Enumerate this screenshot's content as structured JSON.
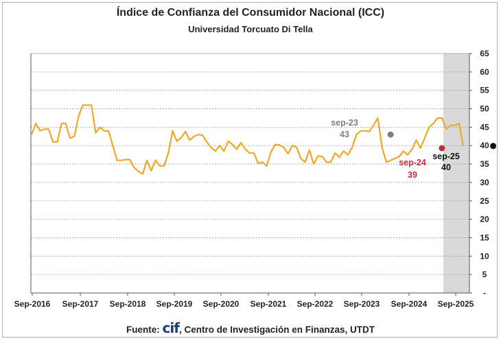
{
  "chart_data": {
    "type": "line",
    "title": "Índice de Confianza del Consumidor Nacional (ICC)",
    "subtitle": "Universidad Torcuato Di Tella",
    "source_prefix": "Fuente: ",
    "source_logo": "cif",
    "source_suffix": ", Centro de Investigación en Finanzas, UTDT",
    "ylim": [
      0,
      65
    ],
    "y_ticks": [
      65,
      60,
      55,
      50,
      45,
      40,
      35,
      30,
      25,
      20,
      15,
      10,
      5,
      0
    ],
    "y_tick_labels": [
      "65",
      "60",
      "55",
      "50",
      "45",
      "40",
      "35",
      "30",
      "25",
      "20",
      "15",
      "10",
      "5",
      "-"
    ],
    "x_tick_labels": [
      "Sep-2016",
      "Sep-2017",
      "Sep-2018",
      "Sep-2019",
      "Sep-2020",
      "Sep-2021",
      "Sep-2022",
      "Sep-2023",
      "Sep-2024",
      "Sep-2025"
    ],
    "series_color": "#f5a623",
    "shaded_region_color": "#d9d9d9",
    "grid": true,
    "series": [
      {
        "values": [
          43,
          46,
          44,
          44.5,
          44.5,
          41,
          41,
          46,
          46,
          42,
          42.5,
          48,
          51,
          51,
          51,
          43.5,
          45,
          44,
          44,
          40,
          36,
          36,
          36.2,
          36.2,
          34,
          33,
          32.3,
          36,
          33.2,
          36,
          34.5,
          34.5,
          38,
          44,
          41.2,
          42.2,
          43.8,
          41.5,
          42.5,
          43,
          42.8,
          41,
          39.5,
          38.5,
          40,
          38.5,
          41.2,
          40.3,
          39,
          40.8,
          39,
          38,
          38,
          35.2,
          35.5,
          34.5,
          38.3,
          40.3,
          40.2,
          39.5,
          37.8,
          40,
          39.5,
          36.5,
          35.5,
          38.8,
          35,
          37.2,
          37,
          35.5,
          35.5,
          38,
          36.8,
          38.5,
          37.5,
          39.5,
          43,
          44,
          44,
          43.8,
          45.5,
          47.5,
          39.5,
          35.5,
          36,
          36.5,
          37,
          38.5,
          37.5,
          39,
          41.5,
          39.3,
          42.2,
          45,
          46,
          47.5,
          47.5,
          44.5,
          45.5,
          45.5,
          46,
          39.9
        ]
      }
    ],
    "annotations": [
      {
        "label": "sep-23",
        "value": "43",
        "color": "#7f7f7f"
      },
      {
        "label": "sep-24",
        "value": "39",
        "color": "#c0303a"
      },
      {
        "label": "sep-25",
        "value": "40",
        "color": "#111111"
      }
    ]
  }
}
